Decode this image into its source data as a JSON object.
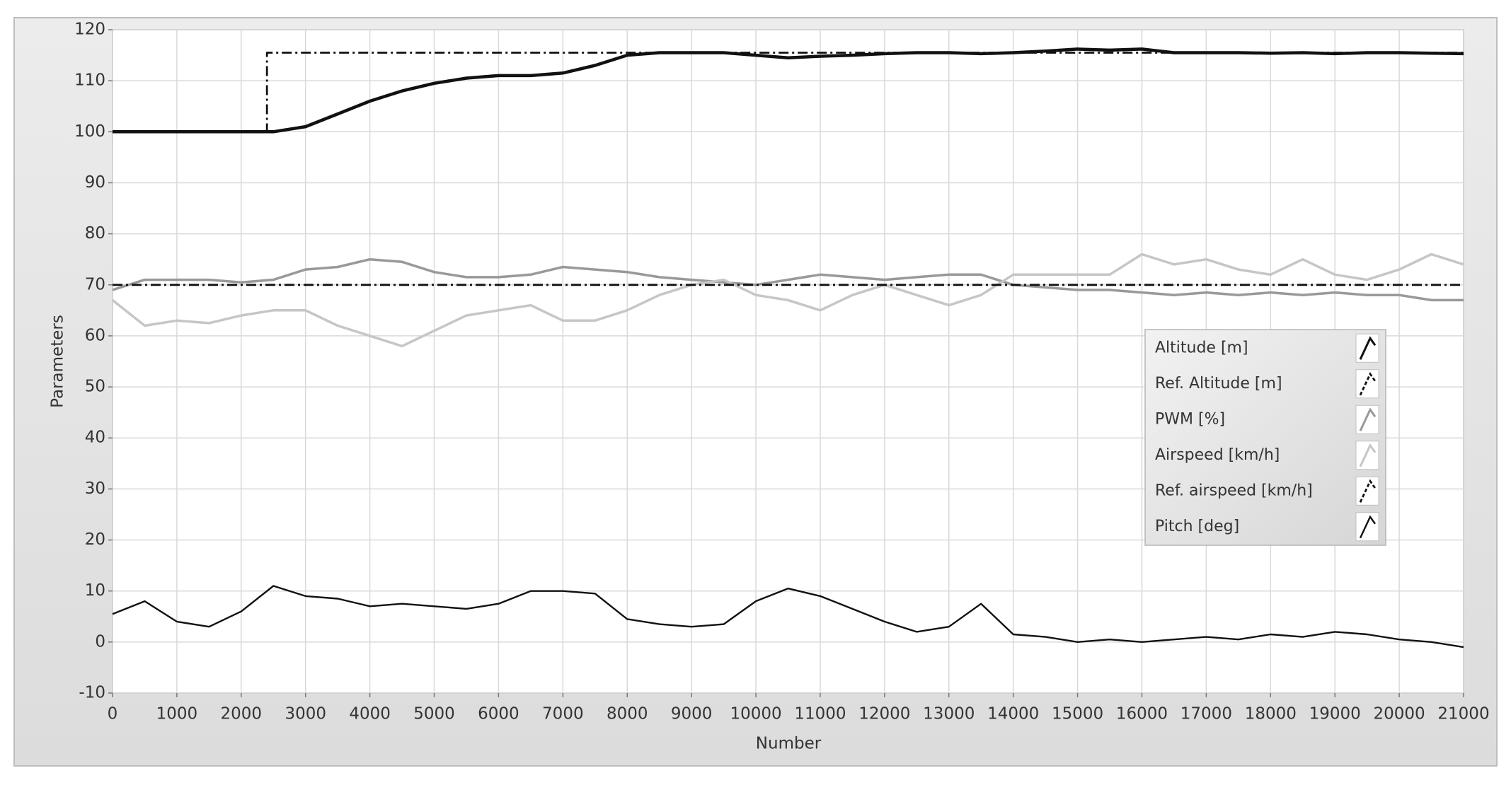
{
  "chart_data": {
    "type": "line",
    "xlabel": "Number",
    "ylabel": "Parameters",
    "x": [
      0,
      500,
      1000,
      1500,
      2000,
      2500,
      3000,
      3500,
      4000,
      4500,
      5000,
      5500,
      6000,
      6500,
      7000,
      7500,
      8000,
      8500,
      9000,
      9500,
      10000,
      10500,
      11000,
      11500,
      12000,
      12500,
      13000,
      13500,
      14000,
      14500,
      15000,
      15500,
      16000,
      16500,
      17000,
      17500,
      18000,
      18500,
      19000,
      19500,
      20000,
      20500,
      21000
    ],
    "xlim": [
      0,
      21000
    ],
    "ylim": [
      -10,
      120
    ],
    "xticks": [
      0,
      1000,
      2000,
      3000,
      4000,
      5000,
      6000,
      7000,
      8000,
      9000,
      10000,
      11000,
      12000,
      13000,
      14000,
      15000,
      16000,
      17000,
      18000,
      19000,
      20000,
      21000
    ],
    "yticks": [
      -10,
      0,
      10,
      20,
      30,
      40,
      50,
      60,
      70,
      80,
      90,
      100,
      110,
      120
    ],
    "grid": true,
    "legend": "right",
    "series": [
      {
        "name": "Altitude [m]",
        "color": "#111111",
        "style": "thick",
        "values": [
          100,
          100,
          100,
          100,
          100,
          100,
          101,
          103.5,
          106,
          108,
          109.5,
          110.5,
          111,
          111,
          111.5,
          113,
          115,
          115.5,
          115.5,
          115.5,
          115,
          114.5,
          114.8,
          115,
          115.3,
          115.5,
          115.5,
          115.3,
          115.5,
          115.8,
          116.2,
          116,
          116.2,
          115.5,
          115.5,
          115.5,
          115.4,
          115.5,
          115.3,
          115.5,
          115.5,
          115.4,
          115.3
        ]
      },
      {
        "name": "Ref. Altitude [m]",
        "color": "#111111",
        "style": "dash-dot",
        "x": [
          0,
          2400,
          2400,
          21000
        ],
        "values": [
          100,
          100,
          115.5,
          115.5
        ]
      },
      {
        "name": "PWM [%]",
        "color": "#999999",
        "style": "solid",
        "values": [
          69,
          71,
          71,
          71,
          70.5,
          71,
          73,
          73.5,
          75,
          74.5,
          72.5,
          71.5,
          71.5,
          72,
          73.5,
          73,
          72.5,
          71.5,
          71,
          70.5,
          70,
          71,
          72,
          71.5,
          71,
          71.5,
          72,
          72,
          70,
          69.5,
          69,
          69,
          68.5,
          68,
          68.5,
          68,
          68.5,
          68,
          68.5,
          68,
          68,
          67,
          67
        ]
      },
      {
        "name": "Airspeed [km/h]",
        "color": "#c6c6c6",
        "style": "solid",
        "values": [
          67,
          62,
          63,
          62.5,
          64,
          65,
          65,
          62,
          60,
          58,
          61,
          64,
          65,
          66,
          63,
          63,
          65,
          68,
          70,
          71,
          68,
          67,
          65,
          68,
          70,
          68,
          66,
          68,
          72,
          72,
          72,
          72,
          76,
          74,
          75,
          73,
          72,
          75,
          72,
          71,
          73,
          76,
          74
        ]
      },
      {
        "name": "Ref. airspeed [km/h]",
        "color": "#111111",
        "style": "dash-dot",
        "x": [
          0,
          21000
        ],
        "values": [
          70,
          70
        ]
      },
      {
        "name": "Pitch [deg]",
        "color": "#111111",
        "style": "thin",
        "values": [
          5.5,
          8,
          4,
          3,
          6,
          11,
          9,
          8.5,
          7,
          7.5,
          7,
          6.5,
          7.5,
          10,
          10,
          9.5,
          4.5,
          3.5,
          3,
          3.5,
          8,
          10.5,
          9,
          6.5,
          4,
          2,
          3,
          7.5,
          1.5,
          1,
          0,
          0.5,
          0,
          0.5,
          1,
          0.5,
          1.5,
          1,
          2,
          1.5,
          0.5,
          0,
          -1
        ]
      }
    ]
  }
}
